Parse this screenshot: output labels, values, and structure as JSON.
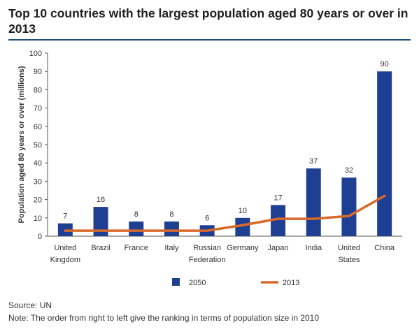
{
  "title": "Top 10 countries with the largest population aged 80 years or over in 2013",
  "footer": {
    "source": "Source: UN",
    "note": "Note: The order from right to left give the ranking in terms of population size in 2010"
  },
  "colors": {
    "bar": "#1f3f93",
    "line": "#d9692a",
    "axis": "#555555",
    "title_rule": "#1f4e79"
  },
  "chart_data": {
    "type": "bar",
    "categories": [
      [
        "United",
        "Kingdom"
      ],
      [
        "Brazil"
      ],
      [
        "France"
      ],
      [
        "Italy"
      ],
      [
        "Russian",
        "Federation"
      ],
      [
        "Germany"
      ],
      [
        "Japan"
      ],
      [
        "India"
      ],
      [
        "United",
        "States"
      ],
      [
        "China"
      ]
    ],
    "series": [
      {
        "name": "2050",
        "kind": "bar",
        "values": [
          7,
          16,
          8,
          8,
          6,
          10,
          17,
          37,
          32,
          90
        ]
      },
      {
        "name": "2013",
        "kind": "line",
        "values": [
          3,
          3,
          3,
          3,
          3,
          6,
          9.5,
          9.5,
          11,
          22
        ]
      }
    ],
    "data_labels": [
      "7",
      "16",
      "8",
      "8",
      "6",
      "10",
      "17",
      "37",
      "32",
      "90"
    ],
    "ylabel": "Population aged 80 years or over (millions)",
    "xlabel": "",
    "ylim": [
      0,
      100
    ],
    "yticks": [
      0,
      10,
      20,
      30,
      40,
      50,
      60,
      70,
      80,
      90,
      100
    ],
    "grid": false,
    "legend": {
      "position": "bottom",
      "entries": [
        "2050",
        "2013"
      ]
    }
  }
}
